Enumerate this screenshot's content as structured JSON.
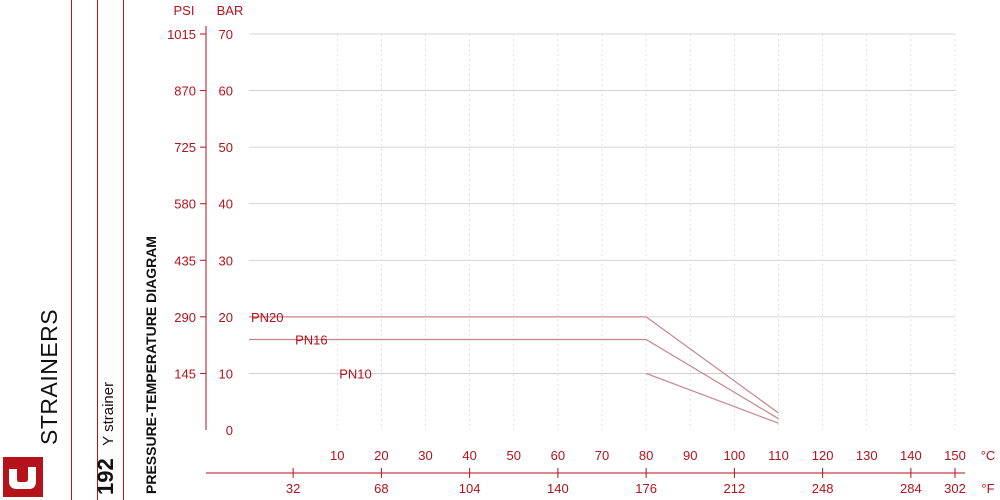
{
  "sidebar": {
    "category": "STRAINERS",
    "model_number": "192",
    "model_name": "Y strainer",
    "diagram_title": "PRESSURE-TEMPERATURE DIAGRAM"
  },
  "colors": {
    "accent": "#b5121b",
    "grid": "#d9d9d9",
    "curve": "#c9868c"
  },
  "chart_data": {
    "type": "line",
    "title": "PRESSURE-TEMPERATURE DIAGRAM",
    "y_units": [
      "PSI",
      "BAR"
    ],
    "x_units": [
      "°C",
      "°F"
    ],
    "ylim": [
      0,
      70
    ],
    "xlim": [
      -10,
      150
    ],
    "grid": true,
    "bar_ticks": [
      0,
      10,
      20,
      30,
      40,
      50,
      60,
      70
    ],
    "psi_ticks": [
      {
        "bar": 10,
        "label": "145"
      },
      {
        "bar": 20,
        "label": "290"
      },
      {
        "bar": 30,
        "label": "435"
      },
      {
        "bar": 40,
        "label": "580"
      },
      {
        "bar": 50,
        "label": "725"
      },
      {
        "bar": 60,
        "label": "870"
      },
      {
        "bar": 70,
        "label": "1015"
      }
    ],
    "celsius_ticks": [
      10,
      20,
      30,
      40,
      50,
      60,
      70,
      80,
      90,
      100,
      110,
      120,
      130,
      140,
      150
    ],
    "fahrenheit_ticks": [
      {
        "c": 0,
        "label": "32"
      },
      {
        "c": 20,
        "label": "68"
      },
      {
        "c": 40,
        "label": "104"
      },
      {
        "c": 60,
        "label": "140"
      },
      {
        "c": 80,
        "label": "176"
      },
      {
        "c": 100,
        "label": "212"
      },
      {
        "c": 120,
        "label": "248"
      },
      {
        "c": 140,
        "label": "284"
      },
      {
        "c": 150,
        "label": "302"
      }
    ],
    "series": [
      {
        "name": "PN20",
        "x": [
          -10,
          80,
          110
        ],
        "y": [
          20,
          20,
          3
        ]
      },
      {
        "name": "PN16",
        "x": [
          -10,
          80,
          110
        ],
        "y": [
          16,
          16,
          2
        ]
      },
      {
        "name": "PN10",
        "x": [
          80,
          110
        ],
        "y": [
          10,
          1.2
        ]
      }
    ]
  }
}
